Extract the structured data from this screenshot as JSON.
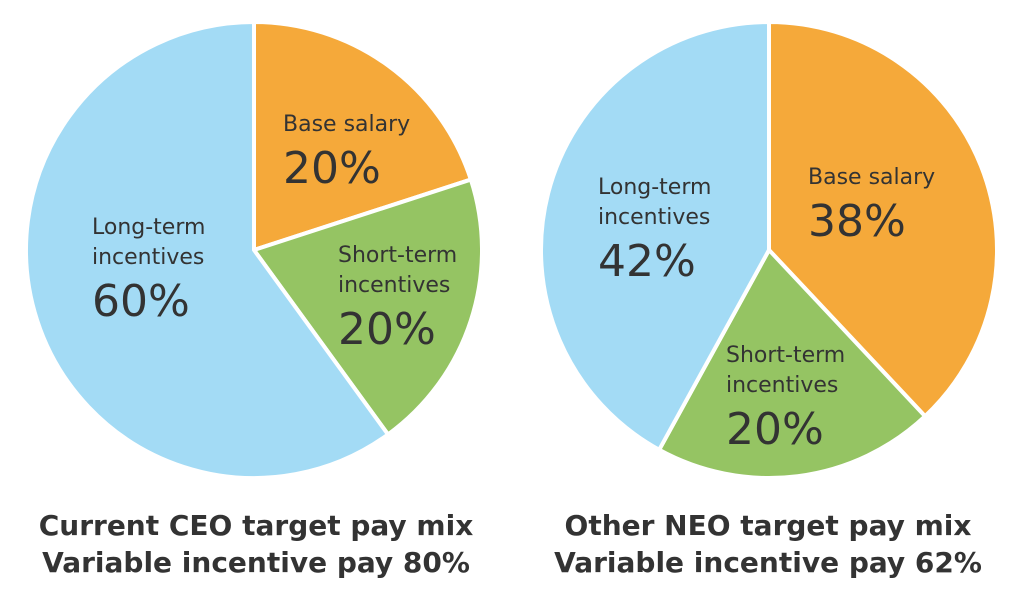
{
  "colors": {
    "base": "#f5a93a",
    "short": "#95c463",
    "long": "#a3dbf5",
    "border": "#ffffff",
    "text": "#333333"
  },
  "chart_data": [
    {
      "type": "pie",
      "title": "Current CEO target pay mix",
      "subtitle": "Variable incentive pay 80%",
      "slices": [
        {
          "key": "base",
          "label_lines": [
            "Base salary"
          ],
          "value": 20,
          "value_label": "20%"
        },
        {
          "key": "short",
          "label_lines": [
            "Short-term",
            "incentives"
          ],
          "value": 20,
          "value_label": "20%"
        },
        {
          "key": "long",
          "label_lines": [
            "Long-term",
            "incentives"
          ],
          "value": 60,
          "value_label": "60%"
        }
      ]
    },
    {
      "type": "pie",
      "title": "Other NEO target pay mix",
      "subtitle": "Variable incentive pay 62%",
      "slices": [
        {
          "key": "base",
          "label_lines": [
            "Base salary"
          ],
          "value": 38,
          "value_label": "38%"
        },
        {
          "key": "short",
          "label_lines": [
            "Short-term",
            "incentives"
          ],
          "value": 20,
          "value_label": "20%"
        },
        {
          "key": "long",
          "label_lines": [
            "Long-term",
            "incentives"
          ],
          "value": 42,
          "value_label": "42%"
        }
      ]
    }
  ]
}
